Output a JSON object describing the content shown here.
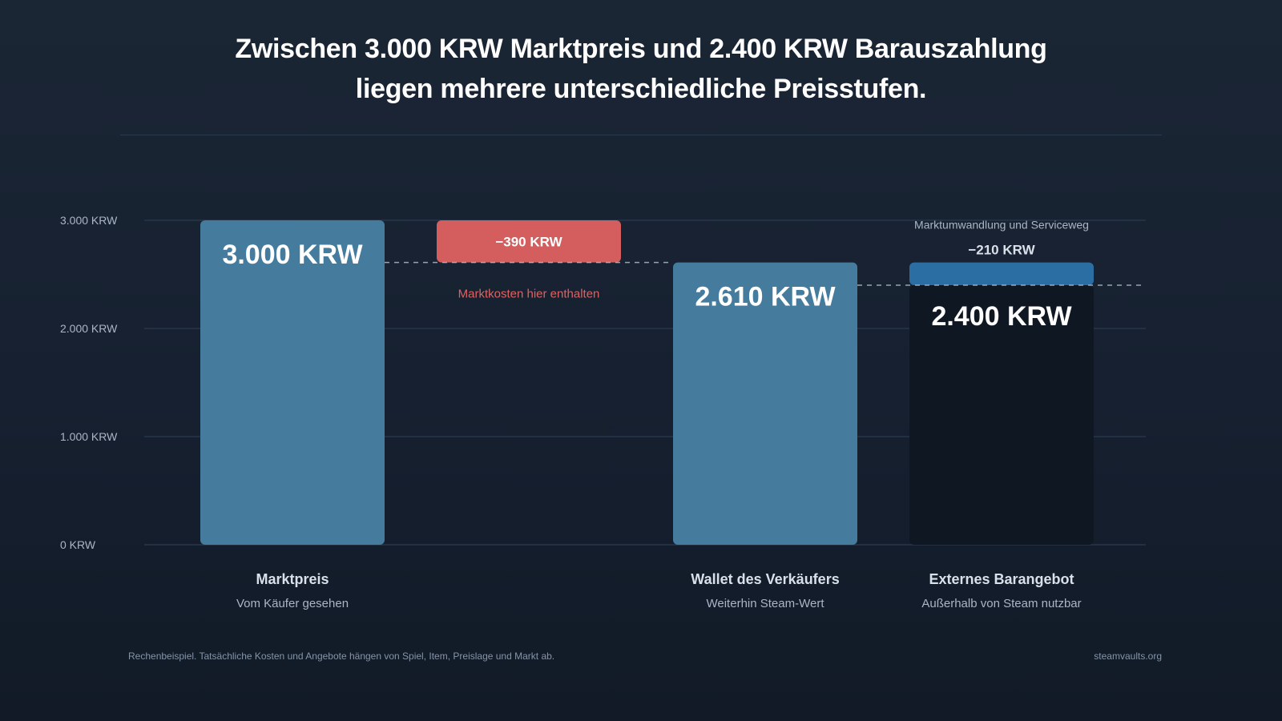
{
  "title": {
    "line1": "Zwischen 3.000 KRW Marktpreis und 2.400 KRW Barauszahlung",
    "line2": "liegen mehrere unterschiedliche Preisstufen."
  },
  "footer": {
    "note": "Rechenbeispiel. Tatsächliche Kosten und Angebote hängen von Spiel, Item, Preislage und Markt ab.",
    "brand": "steamvaults.org"
  },
  "chart_data": {
    "type": "bar",
    "subtype": "waterfall",
    "ylim": [
      0,
      3000
    ],
    "yticks": [
      {
        "value": 0,
        "label": "0 KRW"
      },
      {
        "value": 1000,
        "label": "1.000 KRW"
      },
      {
        "value": 2000,
        "label": "2.000 KRW"
      },
      {
        "value": 3000,
        "label": "3.000 KRW"
      }
    ],
    "grid": true,
    "colors": {
      "total_bar": "#457b9d",
      "cash_bar": "#0f1722",
      "market_loss": "#d45d5d",
      "service_loss": "#2a6ea3",
      "grid": "#26364a",
      "tick_text": "#aab6c5",
      "category_label": "#d8e0ea",
      "category_sub": "#aab6c5",
      "loss_note": "#e06262"
    },
    "steps": [
      {
        "kind": "total",
        "value": 3000,
        "value_label": "3.000 KRW",
        "label": "Marktpreis",
        "sublabel": "Vom Käufer gesehen"
      },
      {
        "kind": "decrease",
        "value": -390,
        "from": 3000,
        "to": 2610,
        "value_label": "−390 KRW",
        "note": "Marktkosten hier enthalten"
      },
      {
        "kind": "total",
        "value": 2610,
        "value_label": "2.610 KRW",
        "label": "Wallet des Verkäufers",
        "sublabel": "Weiterhin Steam-Wert"
      },
      {
        "kind": "total_with_decrease",
        "value": 2400,
        "from": 2610,
        "to": 2400,
        "decrease_value": -210,
        "value_label": "2.400 KRW",
        "decrease_label": "−210 KRW",
        "decrease_note": "Marktumwandlung und Serviceweg",
        "label": "Externes Barangebot",
        "sublabel": "Außerhalb von Steam nutzbar"
      }
    ]
  }
}
